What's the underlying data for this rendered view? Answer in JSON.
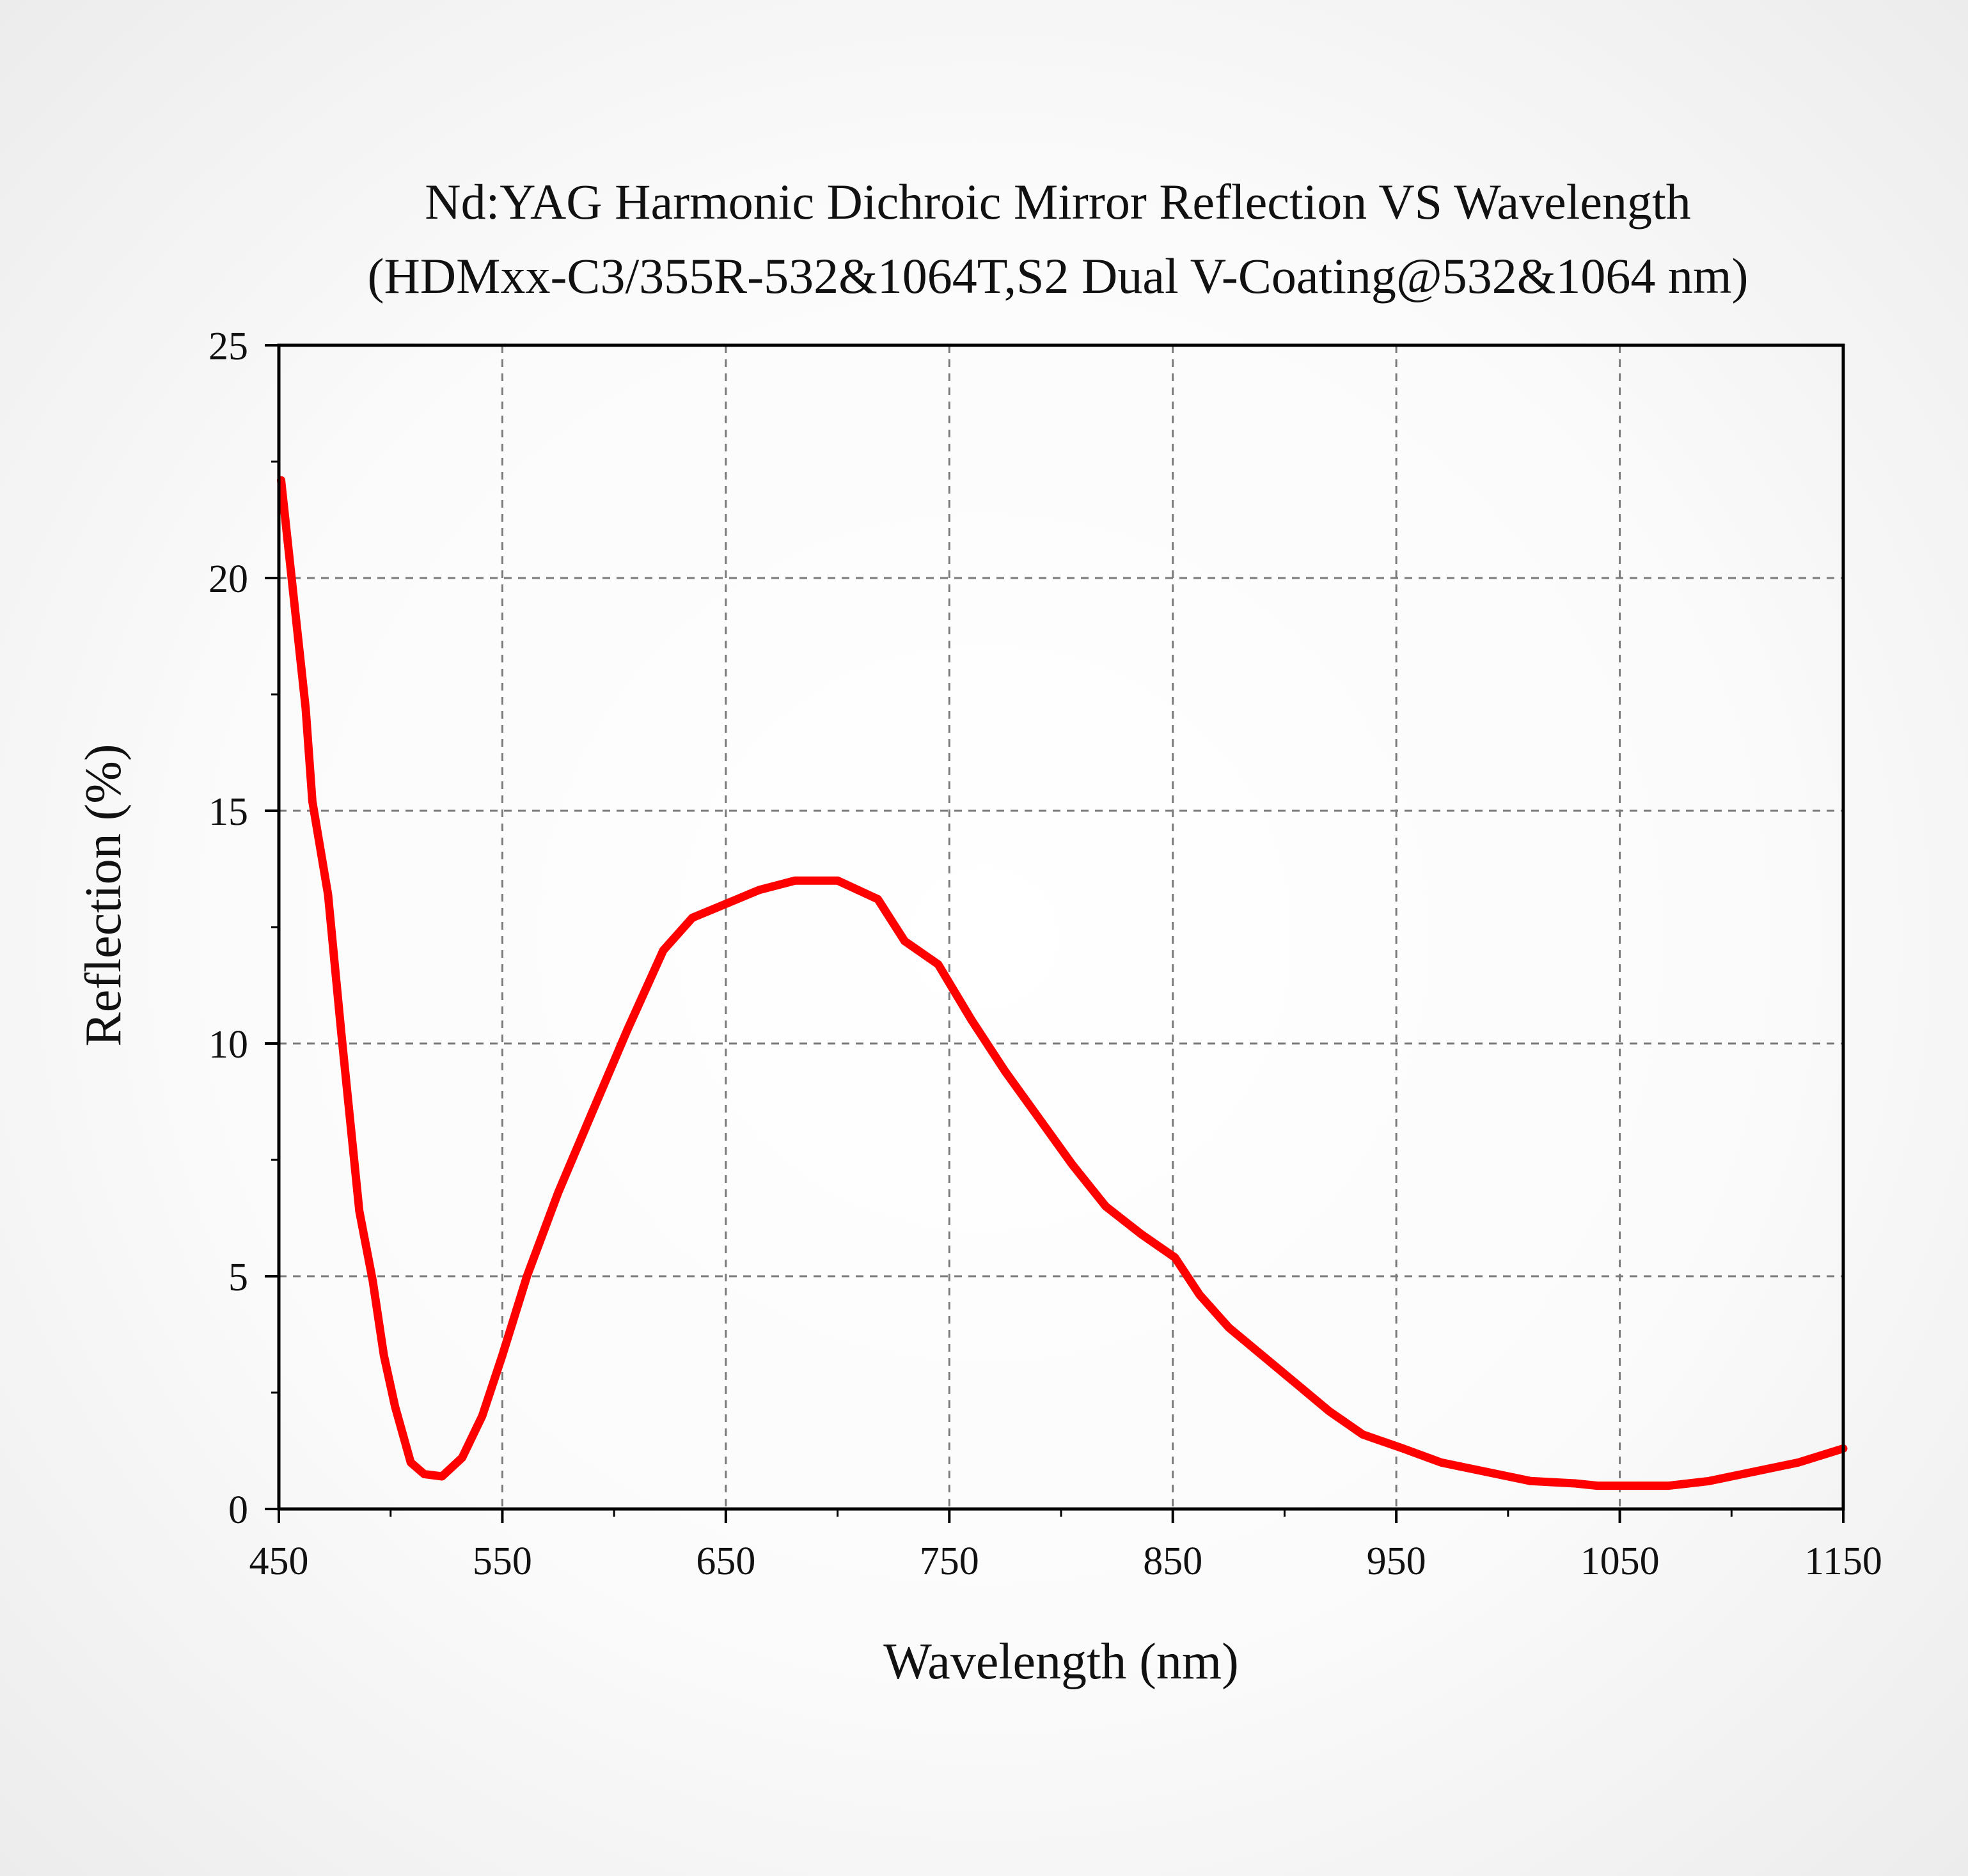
{
  "chart_data": {
    "type": "line",
    "title": "Nd:YAG Harmonic Dichroic Mirror Reflection VS Wavelength",
    "subtitle": "(HDMxx-C3/355R-532&1064T,S2 Dual V-Coating@532&1064 nm)",
    "xlabel": "Wavelength (nm)",
    "ylabel": "Reflection (%)",
    "xlim": [
      450,
      1150
    ],
    "ylim": [
      0,
      25
    ],
    "xticks": [
      450,
      550,
      650,
      750,
      850,
      950,
      1050,
      1150
    ],
    "yticks": [
      0,
      5,
      10,
      15,
      20,
      25
    ],
    "grid": true,
    "series": [
      {
        "color": "#ff0000",
        "x": [
          451,
          462,
          465,
          472,
          478,
          486,
          492,
          497,
          502,
          509,
          515,
          523,
          532,
          541,
          550,
          561,
          575,
          590,
          606,
          622,
          635,
          650,
          665,
          681,
          690,
          700,
          718,
          730,
          745,
          760,
          775,
          790,
          805,
          820,
          836,
          851,
          862,
          875,
          890,
          905,
          920,
          935,
          953,
          970,
          990,
          1010,
          1030,
          1040,
          1050,
          1072,
          1090,
          1110,
          1130,
          1150
        ],
        "y": [
          22.1,
          17.2,
          15.2,
          13.2,
          10.2,
          6.4,
          4.9,
          3.3,
          2.2,
          1.0,
          0.75,
          0.7,
          1.1,
          2.0,
          3.3,
          5.0,
          6.8,
          8.5,
          10.3,
          12.0,
          12.7,
          13.0,
          13.3,
          13.5,
          13.5,
          13.5,
          13.1,
          12.2,
          11.7,
          10.5,
          9.4,
          8.4,
          7.4,
          6.5,
          5.9,
          5.4,
          4.6,
          3.9,
          3.3,
          2.7,
          2.1,
          1.6,
          1.3,
          1.0,
          0.8,
          0.6,
          0.55,
          0.5,
          0.5,
          0.5,
          0.6,
          0.8,
          1.0,
          1.3
        ]
      }
    ]
  }
}
